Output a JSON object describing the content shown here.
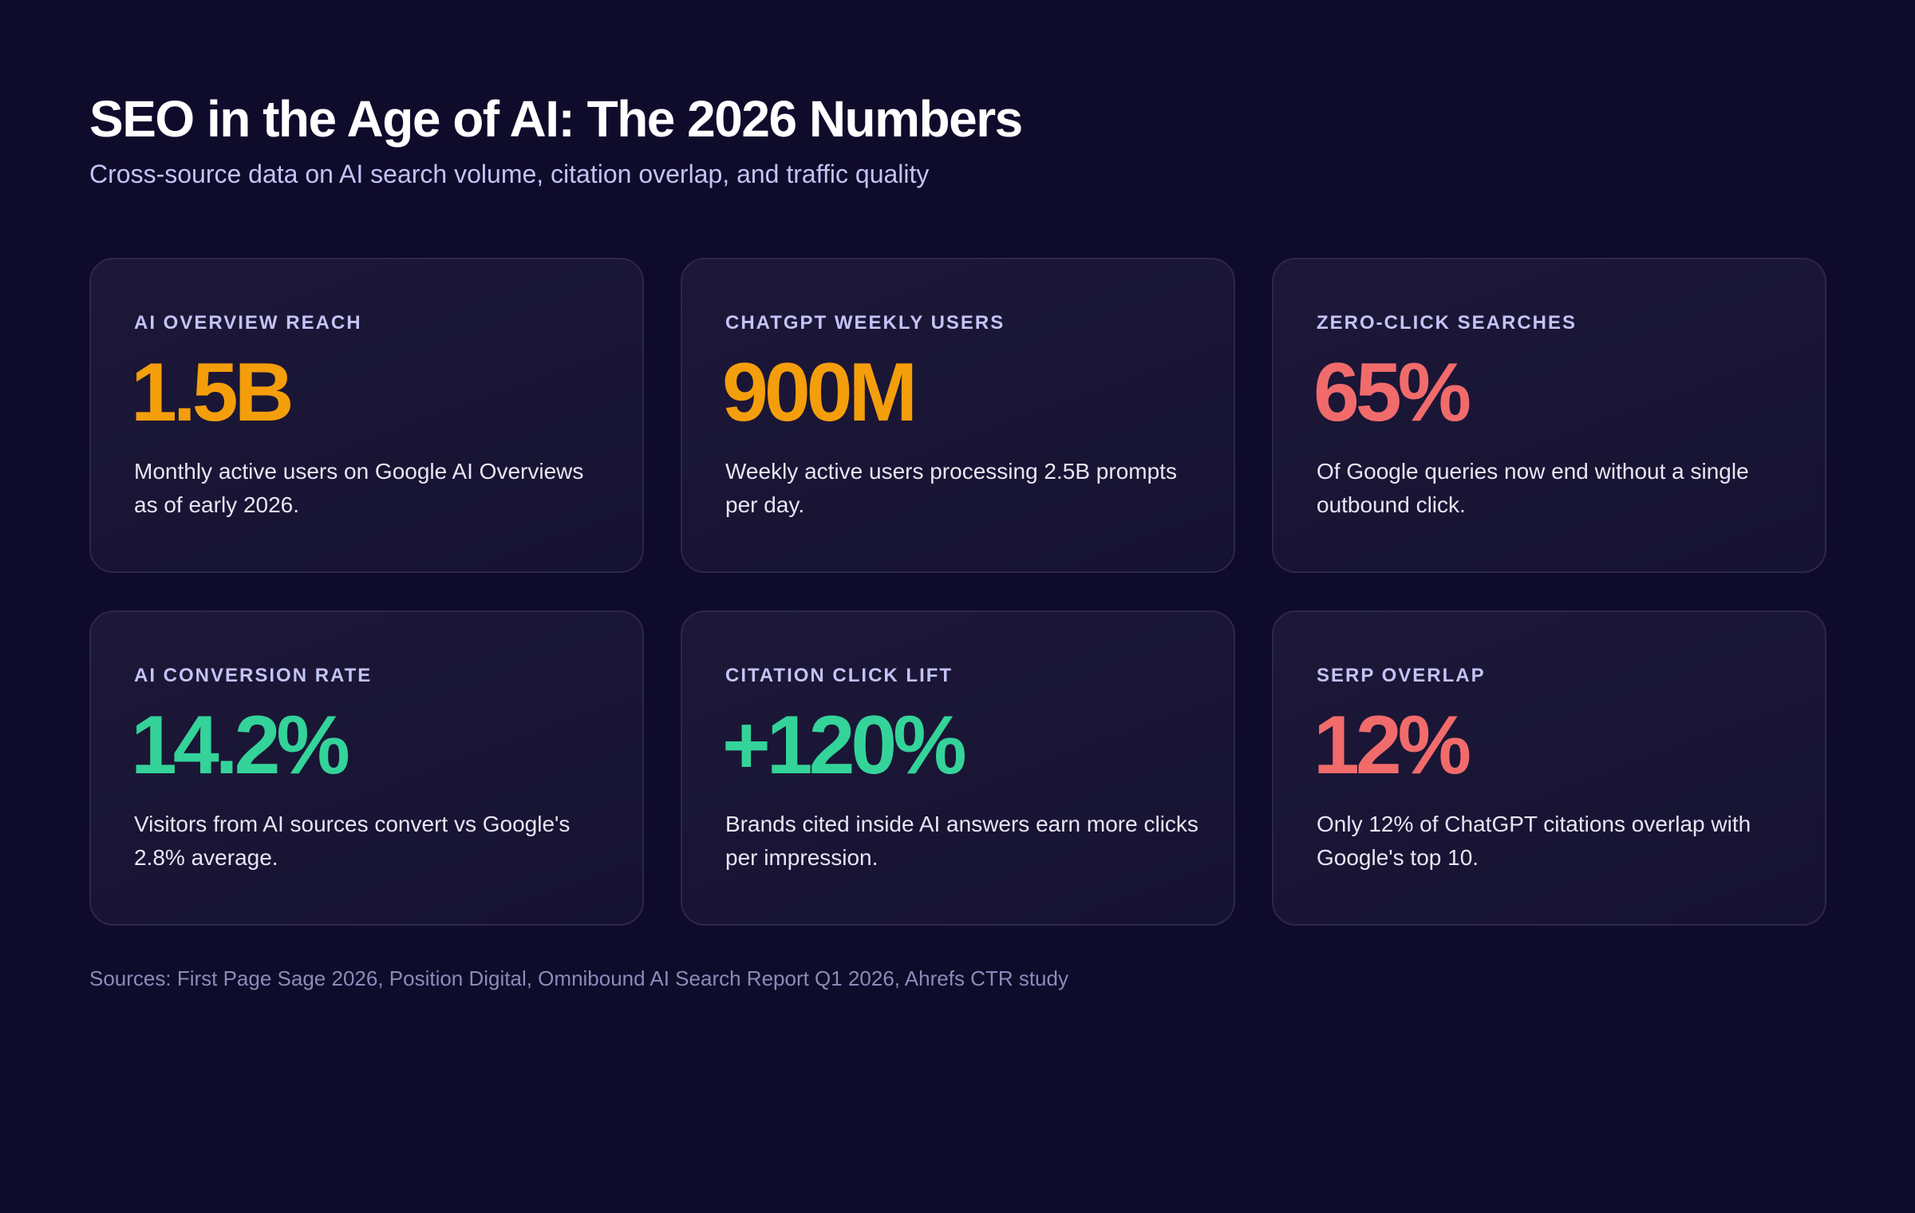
{
  "header": {
    "title": "SEO in the Age of AI: The 2026 Numbers",
    "subtitle": "Cross-source data on AI search volume, citation overlap, and traffic quality"
  },
  "cards": [
    {
      "label": "AI OVERVIEW REACH",
      "value": "1.5B",
      "description": "Monthly active users on Google AI Overviews as of early 2026."
    },
    {
      "label": "CHATGPT WEEKLY USERS",
      "value": "900M",
      "description": "Weekly active users processing 2.5B prompts per day."
    },
    {
      "label": "ZERO-CLICK SEARCHES",
      "value": "65%",
      "description": "Of Google queries now end without a single outbound click."
    },
    {
      "label": "AI CONVERSION RATE",
      "value": "14.2%",
      "description": "Visitors from AI sources convert vs Google's 2.8% average."
    },
    {
      "label": "CITATION CLICK LIFT",
      "value": "+120%",
      "description": "Brands cited inside AI answers earn more clicks per impression."
    },
    {
      "label": "SERP OVERLAP",
      "value": "12%",
      "description": "Only 12% of ChatGPT citations overlap with Google's top 10."
    }
  ],
  "footer": {
    "sources": "Sources: First Page Sage 2026, Position Digital, Omnibound AI Search Report Q1 2026, Ahrefs CTR study"
  }
}
